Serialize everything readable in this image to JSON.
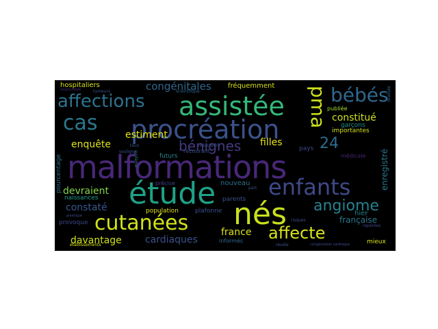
{
  "wordcloud": {
    "background": "#000000",
    "words": [
      {
        "text": "malformations",
        "color": "#482878"
      },
      {
        "text": "étude",
        "color": "#1fa187"
      },
      {
        "text": "procréation",
        "color": "#3b528b"
      },
      {
        "text": "assistée",
        "color": "#35b779"
      },
      {
        "text": "nés",
        "color": "#c8e020"
      },
      {
        "text": "cutanées",
        "color": "#d2e21b"
      },
      {
        "text": "enfants",
        "color": "#3e4a89"
      },
      {
        "text": "affections",
        "color": "#2c738e"
      },
      {
        "text": "cas",
        "color": "#2a788e"
      },
      {
        "text": "pma",
        "color": "#cde11d"
      },
      {
        "text": "bébés",
        "color": "#31688e"
      },
      {
        "text": "affecte",
        "color": "#d8e219"
      },
      {
        "text": "angiome",
        "color": "#26828e"
      },
      {
        "text": "bénignes",
        "color": "#443983"
      },
      {
        "text": "24",
        "color": "#2f6c8e"
      },
      {
        "text": "congénitales",
        "color": "#31688e"
      },
      {
        "text": "constitué",
        "color": "#d0e11c"
      },
      {
        "text": "filles",
        "color": "#e5e419"
      },
      {
        "text": "estiment",
        "color": "#e2e418"
      },
      {
        "text": "enquête",
        "color": "#dde318"
      },
      {
        "text": "devraient",
        "color": "#86d549"
      },
      {
        "text": "constaté",
        "color": "#38588c"
      },
      {
        "text": "cardiaques",
        "color": "#3b528b"
      },
      {
        "text": "davantage",
        "color": "#d0e11c"
      },
      {
        "text": "france",
        "color": "#dde318"
      },
      {
        "text": "française",
        "color": "#2a788e"
      },
      {
        "text": "enregistré",
        "color": "#2a788e"
      },
      {
        "text": "hospitaliers",
        "color": "#d8e219"
      },
      {
        "text": "fréquemment",
        "color": "#dde318"
      },
      {
        "text": "garçons",
        "color": "#20928c"
      },
      {
        "text": "importantes",
        "color": "#d5e21a"
      },
      {
        "text": "publiée",
        "color": "#a8db34"
      },
      {
        "text": "pays",
        "color": "#3e4989"
      },
      {
        "text": "hier",
        "color": "#26828e"
      },
      {
        "text": "nouveau",
        "color": "#2d708e"
      },
      {
        "text": "parents",
        "color": "#3b528b"
      },
      {
        "text": "population",
        "color": "#e5e419"
      },
      {
        "text": "plafonne",
        "color": "#3b528b"
      },
      {
        "text": "naissances",
        "color": "#1f9e89"
      },
      {
        "text": "provoque",
        "color": "#3f4788"
      },
      {
        "text": "informés",
        "color": "#31688e"
      },
      {
        "text": "mieux",
        "color": "#dde318"
      },
      {
        "text": "futurs",
        "color": "#24868e"
      },
      {
        "text": "recourant",
        "color": "#3b528b"
      },
      {
        "text": "précise",
        "color": "#414487"
      },
      {
        "text": "pourcentage",
        "color": "#2c728e"
      },
      {
        "text": "médicale",
        "color": "#482475"
      },
      {
        "text": "tumeurs",
        "color": "#3b528b"
      },
      {
        "text": "scientifique",
        "color": "#31688e"
      },
      {
        "text": "taux",
        "color": "#3b528b"
      },
      {
        "text": "souligne",
        "color": "#3b528b"
      },
      {
        "text": "rédacteurs",
        "color": "#3b528b"
      },
      {
        "text": "système",
        "color": "#2a788e"
      },
      {
        "text": "élevé",
        "color": "#482878"
      },
      {
        "text": "part",
        "color": "#3b528b"
      },
      {
        "text": "repérées",
        "color": "#3e4989"
      },
      {
        "text": "réalisée",
        "color": "#31688e"
      },
      {
        "text": "révèle",
        "color": "#3b528b"
      },
      {
        "text": "établissements",
        "color": "#d8e219"
      },
      {
        "text": "responsable",
        "color": "#482878"
      },
      {
        "text": "risques",
        "color": "#3b528b"
      },
      {
        "text": "congénitales cardiaque",
        "color": "#3e4a89"
      },
      {
        "text": "plastique",
        "color": "#3e4989"
      }
    ]
  }
}
